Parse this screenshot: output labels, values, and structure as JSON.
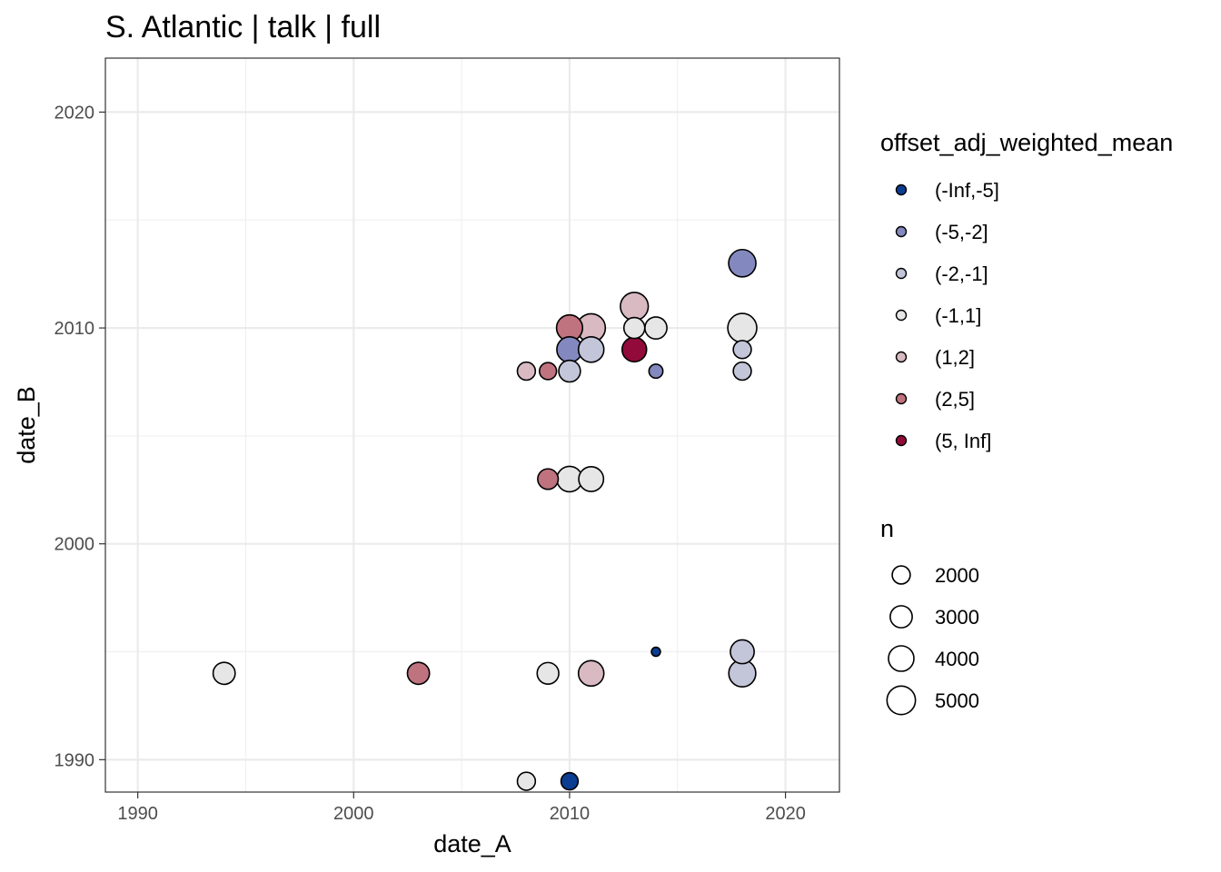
{
  "chart_data": {
    "type": "scatter",
    "title": "S. Atlantic | talk | full",
    "xlabel": "date_A",
    "ylabel": "date_B",
    "xlim": [
      1988.5,
      2022.5
    ],
    "ylim": [
      1988.5,
      2022.5
    ],
    "x_ticks": [
      1990,
      2000,
      2010,
      2020
    ],
    "y_ticks": [
      1990,
      2000,
      2010,
      2020
    ],
    "grid": true,
    "legend_position": "right",
    "color_legend": {
      "title": "offset_adj_weighted_mean",
      "classes": [
        {
          "label": "(-Inf,-5]",
          "color": "#0b3d91"
        },
        {
          "label": "(-5,-2]",
          "color": "#8389bf"
        },
        {
          "label": "(-2,-1]",
          "color": "#c3c5d9"
        },
        {
          "label": "(-1,1]",
          "color": "#e6e6e6"
        },
        {
          "label": "(1,2]",
          "color": "#d9bac2"
        },
        {
          "label": "(2,5]",
          "color": "#bf737f"
        },
        {
          "label": "(5, Inf]",
          "color": "#910a3a"
        }
      ]
    },
    "size_legend": {
      "title": "n",
      "values": [
        2000,
        3000,
        4000,
        5000
      ],
      "labels": [
        "2000",
        "3000",
        "4000",
        "5000"
      ]
    },
    "points": [
      {
        "x": 2008,
        "y": 1989,
        "class": 3,
        "n": 2000
      },
      {
        "x": 2010,
        "y": 1989,
        "class": 0,
        "n": 1800
      },
      {
        "x": 1994,
        "y": 1994,
        "class": 3,
        "n": 3000
      },
      {
        "x": 2003,
        "y": 1994,
        "class": 5,
        "n": 3000
      },
      {
        "x": 2009,
        "y": 1994,
        "class": 3,
        "n": 2900
      },
      {
        "x": 2011,
        "y": 1994,
        "class": 4,
        "n": 4000
      },
      {
        "x": 2018,
        "y": 1994,
        "class": 2,
        "n": 4500
      },
      {
        "x": 2018,
        "y": 1995,
        "class": 2,
        "n": 3500
      },
      {
        "x": 2014,
        "y": 1995,
        "class": 0,
        "n": 500
      },
      {
        "x": 2009,
        "y": 2003,
        "class": 5,
        "n": 2600
      },
      {
        "x": 2010,
        "y": 2003,
        "class": 3,
        "n": 4000
      },
      {
        "x": 2011,
        "y": 2003,
        "class": 3,
        "n": 3800
      },
      {
        "x": 2008,
        "y": 2008,
        "class": 4,
        "n": 2000
      },
      {
        "x": 2009,
        "y": 2008,
        "class": 5,
        "n": 1800
      },
      {
        "x": 2010,
        "y": 2008,
        "class": 2,
        "n": 2900
      },
      {
        "x": 2014,
        "y": 2008,
        "class": 1,
        "n": 1200
      },
      {
        "x": 2018,
        "y": 2008,
        "class": 2,
        "n": 2000
      },
      {
        "x": 2010,
        "y": 2009,
        "class": 1,
        "n": 4000
      },
      {
        "x": 2011,
        "y": 2009,
        "class": 2,
        "n": 4000
      },
      {
        "x": 2013,
        "y": 2009,
        "class": 6,
        "n": 3700
      },
      {
        "x": 2018,
        "y": 2009,
        "class": 2,
        "n": 2000
      },
      {
        "x": 2010,
        "y": 2010,
        "class": 5,
        "n": 4200
      },
      {
        "x": 2011,
        "y": 2010,
        "class": 4,
        "n": 5000
      },
      {
        "x": 2013,
        "y": 2010,
        "class": 3,
        "n": 2700
      },
      {
        "x": 2014,
        "y": 2010,
        "class": 3,
        "n": 3000
      },
      {
        "x": 2018,
        "y": 2010,
        "class": 3,
        "n": 5200
      },
      {
        "x": 2013,
        "y": 2011,
        "class": 4,
        "n": 4800
      },
      {
        "x": 2018,
        "y": 2013,
        "class": 1,
        "n": 4600
      }
    ]
  }
}
